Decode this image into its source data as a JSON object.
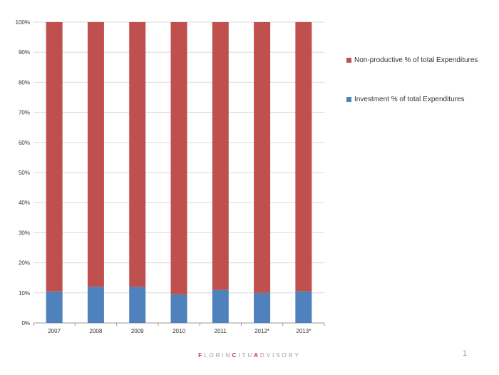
{
  "chart_data": {
    "type": "bar",
    "stacked": true,
    "categories": [
      "2007",
      "2008",
      "2009",
      "2010",
      "2011",
      "2012*",
      "2013*"
    ],
    "series": [
      {
        "name": "Investment % of total Expenditures",
        "color": "#4f81bd",
        "values": [
          10.5,
          12,
          12,
          9.5,
          11,
          10,
          10.5
        ]
      },
      {
        "name": "Non-productive % of total Expenditures",
        "color": "#c0504d",
        "values": [
          89.5,
          88,
          88,
          90.5,
          89,
          90,
          89.5
        ]
      }
    ],
    "ylim": [
      0,
      100
    ],
    "yticks": [
      "0%",
      "10%",
      "20%",
      "30%",
      "40%",
      "50%",
      "60%",
      "70%",
      "80%",
      "90%",
      "100%"
    ],
    "grid": true,
    "legend_position": "right"
  },
  "legend": {
    "items": [
      {
        "label": "Non-productive % of total Expenditures",
        "color": "#c0504d"
      },
      {
        "label": "Investment % of total Expenditures",
        "color": "#4f81bd"
      }
    ]
  },
  "footer": {
    "brand_parts": [
      {
        "text": "F",
        "hl": true
      },
      {
        "text": "LORIN",
        "hl": false
      },
      {
        "text": "C",
        "hl": true
      },
      {
        "text": "ITU",
        "hl": false
      },
      {
        "text": "A",
        "hl": true
      },
      {
        "text": "DVISORY",
        "hl": false
      }
    ],
    "page_number": "1"
  }
}
